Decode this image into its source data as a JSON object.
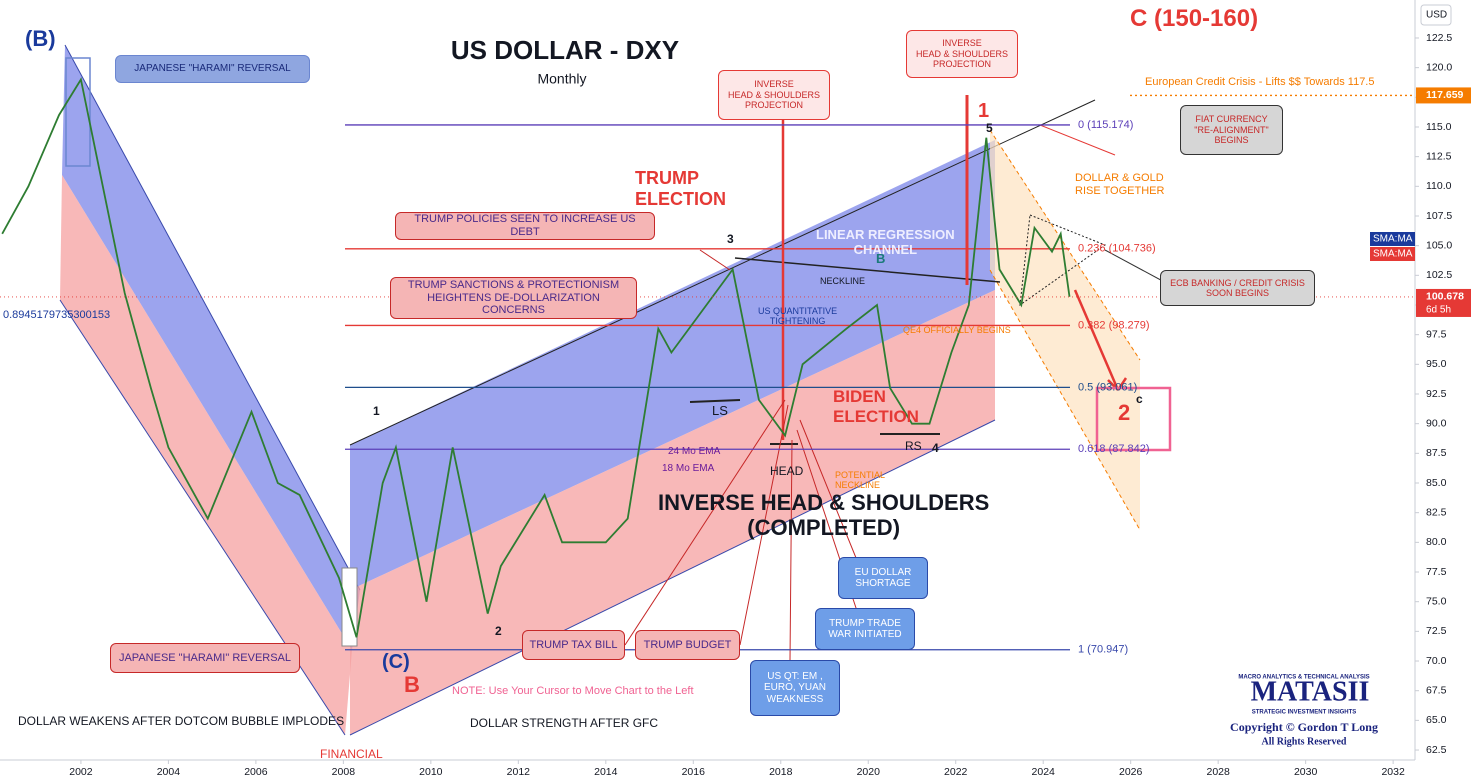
{
  "chart_data": {
    "type": "line",
    "title": "US DOLLAR - DXY",
    "subtitle": "Monthly",
    "currency": "USD",
    "x": [
      2000.2,
      2000.8,
      2001.5,
      2002.0,
      2002.5,
      2003.0,
      2003.6,
      2004.0,
      2004.9,
      2005.9,
      2006.5,
      2007.0,
      2007.9,
      2008.3,
      2008.9,
      2009.2,
      2009.9,
      2010.5,
      2011.3,
      2011.6,
      2012.6,
      2013.0,
      2014.0,
      2014.5,
      2015.2,
      2015.5,
      2016.1,
      2016.9,
      2017.5,
      2018.1,
      2018.5,
      2019.5,
      2020.2,
      2020.5,
      2021.0,
      2021.4,
      2021.9,
      2022.3,
      2022.7,
      2023.0,
      2023.5,
      2023.8,
      2024.2,
      2024.4,
      2024.6
    ],
    "values": [
      106,
      110,
      116,
      119,
      110,
      101,
      93,
      88,
      82,
      91,
      85,
      84,
      77,
      72,
      85,
      88,
      75,
      88,
      74,
      78,
      84,
      80,
      80,
      82,
      98,
      96,
      99,
      103,
      92,
      89,
      95,
      98,
      100,
      93,
      90,
      90,
      96,
      100,
      114.1,
      103,
      100,
      106.5,
      104.5,
      106,
      100.7
    ],
    "color": "#2e7d32",
    "xlim": [
      2000.15,
      2032.5
    ],
    "xticks": [
      2002,
      2004,
      2006,
      2008,
      2010,
      2012,
      2014,
      2016,
      2018,
      2020,
      2022,
      2024,
      2026,
      2028,
      2030,
      2032
    ],
    "ylim": [
      61.66,
      125.7
    ],
    "yticks": [
      62.5,
      {
        "value": 65,
        "label": "65.0"
      },
      67.5,
      {
        "value": 70,
        "label": "70.0"
      },
      72.5,
      {
        "value": 75,
        "label": "75.0"
      },
      77.5,
      {
        "value": 80,
        "label": "80.0"
      },
      82.5,
      {
        "value": 85,
        "label": "85.0"
      },
      87.5,
      {
        "value": 90,
        "label": "90.0"
      },
      92.5,
      {
        "value": 95,
        "label": "95.0"
      },
      97.5,
      {
        "value": 100,
        "label": "100.0"
      },
      102.5,
      {
        "value": 105,
        "label": "105.0"
      },
      107.5,
      {
        "value": 110,
        "label": "110.0"
      },
      112.5,
      {
        "value": 115,
        "label": "115.0"
      },
      117.5,
      {
        "value": 120,
        "label": "120.0"
      },
      122.5
    ],
    "grid": false,
    "levels": [
      {
        "value": 115.174,
        "label": "0 (115.174)",
        "color": "#5b3fb8"
      },
      {
        "value": 104.736,
        "label": "0.236 (104.736)",
        "color": "#e53935"
      },
      {
        "value": 98.279,
        "label": "0.382 (98.279)",
        "color": "#e53935"
      },
      {
        "value": 93.061,
        "label": "0.5 (93.061)",
        "color": "#1f4e8c"
      },
      {
        "value": 87.842,
        "label": "0.618 (87.842)",
        "color": "#5b3fb8"
      },
      {
        "value": 70.947,
        "label": "1 (70.947)",
        "color": "#3949ab"
      }
    ],
    "price_tags": [
      {
        "value": 117.659,
        "color": "#f57c00"
      },
      {
        "value": 100.678,
        "color": "#e53935",
        "countdown": "6d 5h"
      }
    ],
    "indicator_tags": [
      "SMA:MA",
      "SMA:MA"
    ],
    "annotations": [
      "(B)",
      "JAPANESE \"HARAMI\" REVERSAL",
      "INVERSE\nHEAD & SHOULDERS\nPROJECTION",
      "INVERSE\nHEAD & SHOULDERS\nPROJECTION",
      "C (150-160)",
      "European Credit Crisis - Lifts $$ Towards 117.5",
      "FIAT CURRENCY\n\"RE-ALIGNMENT\"\nBEGINS",
      "DOLLAR & GOLD\nRISE TOGETHER",
      "TRUMP\nELECTION",
      "TRUMP POLICIES SEEN TO INCREASE US DEBT",
      "TRUMP SANCTIONS & PROTECTIONISM\nHEIGHTENS DE-DOLLARIZATION CONCERNS",
      "LINEAR REGRESSION\nCHANNEL",
      "NECKLINE",
      "US QUANTITATIVE\nTIGHTENING",
      "QE4 OFFICIALLY BEGINS",
      "ECB BANKING / CREDIT CRISIS\nSOON BEGINS",
      "BIDEN\nELECTION",
      "LS",
      "HEAD",
      "RS",
      "1",
      "2",
      "3",
      "4",
      "5",
      "B",
      "1",
      "2",
      "c",
      "24 Mo EMA",
      "18 Mo EMA",
      "POTENTIAL\nNECKLINE",
      "INVERSE HEAD & SHOULDERS\n(COMPLETED)",
      "EU DOLLAR\nSHORTAGE",
      "TRUMP TRADE\nWAR INITIATED",
      "US QT: EM ,\nEURO, YUAN\nWEAKNESS",
      "TRUMP TAX BILL",
      "TRUMP BUDGET",
      "JAPANESE \"HARAMI\" REVERSAL",
      "(C)",
      "B",
      "NOTE: Use Your Cursor to Move Chart to the Left",
      "DOLLAR WEAKENS AFTER DOTCOM BUBBLE IMPLODES",
      "DOLLAR STRENGTH AFTER GFC",
      "FINANCIAL",
      "0.8945179735300153"
    ],
    "logo": {
      "tagline": "MACRO ANALYTICS & TECHNICAL ANALYSIS",
      "name": "MATASII",
      "subtitle": "STRATEGIC INVESTMENT INSIGHTS",
      "copyright": "Copyright © Gordon T Long",
      "rights": "All Rights Reserved"
    }
  }
}
